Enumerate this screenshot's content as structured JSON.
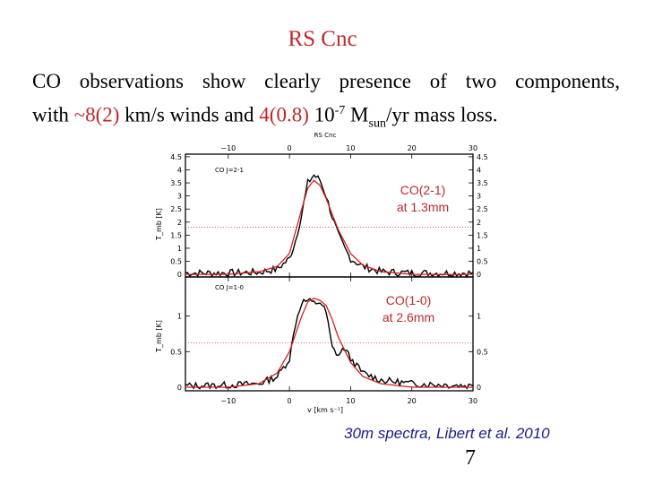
{
  "slide": {
    "title": "RS Cnc",
    "line1_words": [
      "CO",
      "observations",
      "show",
      "clearly",
      "presence",
      "of",
      "two",
      "components,"
    ],
    "line2": {
      "t1": "with ",
      "wind": "~8(2)",
      "t2": " km/s winds and ",
      "massloss": "4(0.8)",
      "t3": " 10",
      "exp": "-7",
      "t4": " M",
      "sub": "sun",
      "t5": "/yr mass loss."
    },
    "caption": "30m spectra, Libert et al. 2010",
    "page_number": "7"
  },
  "colors": {
    "title": "#c0282d",
    "highlight": "#c0282d",
    "caption": "#1a1a8c",
    "observed": "#000000",
    "model": "#d62020"
  },
  "figure": {
    "header": "RS Cnc",
    "panel_top_label": "CO J=2-1",
    "panel_bottom_label": "CO J=1-0",
    "annot_top": [
      "CO(2-1)",
      "at 1.3mm"
    ],
    "annot_bottom": [
      "CO(1-0)",
      "at 2.6mm"
    ],
    "xlabel": "v [km s⁻¹]",
    "ylabel_top": "T_mb [K]",
    "ylabel_bottom": "T_mb [K]",
    "x_ticks": [
      "−10",
      "0",
      "10",
      "20",
      "30"
    ],
    "y_ticks_top": [
      "0",
      "0.5",
      "1",
      "1.5",
      "2",
      "2.5",
      "3",
      "3.5",
      "4",
      "4.5"
    ],
    "y_ticks_bottom": [
      "0",
      "0.5",
      "1"
    ]
  },
  "chart_data": [
    {
      "type": "line",
      "title": "CO J=2-1",
      "xlabel": "v [km s⁻¹]",
      "ylabel": "T_mb [K]",
      "xlim": [
        -17,
        30
      ],
      "ylim": [
        -0.1,
        4.6
      ],
      "grid": false,
      "series": [
        {
          "x": [
            -17,
            -10,
            -5,
            -2,
            0,
            1,
            2,
            3,
            4,
            5,
            6,
            7,
            8,
            9,
            10,
            12,
            15,
            20,
            30
          ],
          "values": [
            0.05,
            0.05,
            0.08,
            0.2,
            0.6,
            1.3,
            2.3,
            3.5,
            3.8,
            3.6,
            3.0,
            2.2,
            1.5,
            1.0,
            0.6,
            0.3,
            0.1,
            0.05,
            0.05
          ]
        },
        {
          "x": [
            -17,
            -10,
            -5,
            -2,
            0,
            2,
            3,
            4,
            5,
            6,
            8,
            10,
            12,
            15,
            20,
            30
          ],
          "values": [
            0,
            0,
            0.1,
            0.3,
            0.8,
            2.5,
            3.3,
            3.6,
            3.4,
            2.9,
            1.7,
            0.8,
            0.35,
            0.1,
            0,
            0
          ]
        }
      ]
    },
    {
      "type": "line",
      "title": "CO J=1-0",
      "xlabel": "v [km s⁻¹]",
      "ylabel": "T_mb [K]",
      "xlim": [
        -17,
        30
      ],
      "ylim": [
        -0.05,
        1.55
      ],
      "grid": false,
      "series": [
        {
          "x": [
            -17,
            -10,
            -5,
            -2,
            0,
            1,
            2,
            3,
            4,
            5,
            6,
            7,
            8,
            9,
            10,
            12,
            15,
            20,
            30
          ],
          "values": [
            0.02,
            0.03,
            0.05,
            0.15,
            0.4,
            0.9,
            1.2,
            1.22,
            1.18,
            1.2,
            1.05,
            0.55,
            0.45,
            0.55,
            0.4,
            0.2,
            0.1,
            0.05,
            0.02
          ]
        },
        {
          "x": [
            -17,
            -10,
            -5,
            -2,
            0,
            2,
            3,
            4,
            5,
            6,
            7,
            8,
            10,
            12,
            15,
            20,
            30
          ],
          "values": [
            0,
            0,
            0.05,
            0.2,
            0.5,
            1.0,
            1.2,
            1.25,
            1.22,
            1.15,
            0.95,
            0.7,
            0.35,
            0.15,
            0.05,
            0,
            0
          ]
        }
      ]
    }
  ]
}
